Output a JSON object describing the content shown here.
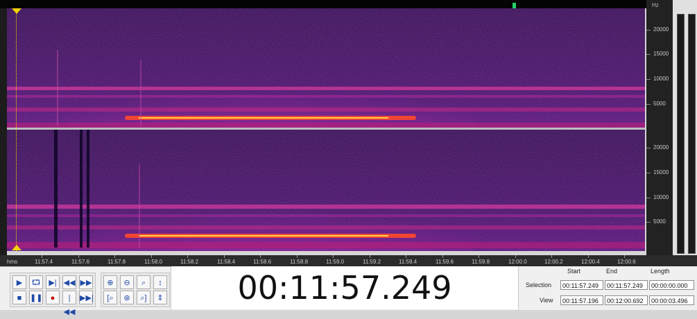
{
  "hz_axis": {
    "unit": "Hz",
    "ticks": [
      "20000",
      "15000",
      "10000",
      "5000"
    ]
  },
  "ruler": {
    "unit": "hms",
    "ticks": [
      "11:57.4",
      "11:57.6",
      "11:57.8",
      "11:58.0",
      "11:58.2",
      "11:58.4",
      "11:58.6",
      "11:58.8",
      "11:59.0",
      "11:59.2",
      "11:59.4",
      "11:59.6",
      "11:59.8",
      "12:00.0",
      "12:00.2",
      "12:00.4",
      "12:00.6"
    ]
  },
  "transport": {
    "play": "play-icon",
    "loop": "loop-play-icon",
    "play_to_end": "play-to-end-icon",
    "rewind": "rewind-icon",
    "fast_forward": "fast-forward-icon",
    "stop": "stop-icon",
    "pause": "pause-icon",
    "record": "record-icon",
    "skip_start": "skip-to-start-icon",
    "skip_end": "skip-to-end-icon"
  },
  "time_display": "00:11:57.249",
  "selection_panel": {
    "headers": {
      "start": "Start",
      "end": "End",
      "length": "Length"
    },
    "selection": {
      "label": "Selection",
      "start": "00:11:57.249",
      "end": "00:11:57.249",
      "length": "00:00:00.000"
    },
    "view": {
      "label": "View",
      "start": "00:11:57.196",
      "end": "00:12:00.692",
      "length": "00:00:03.496"
    }
  },
  "colors": {
    "spectrogram_bg": "#1a0a3d",
    "cursor": "#f4d400",
    "overview_marker": "#22d36a"
  }
}
